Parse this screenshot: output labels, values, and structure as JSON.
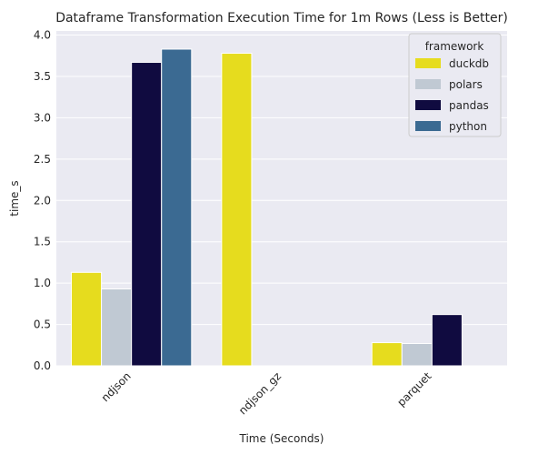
{
  "chart_data": {
    "type": "bar",
    "title": "Dataframe Transformation Execution Time for 1m Rows (Less is Better)",
    "xlabel": "Time (Seconds)",
    "ylabel": "time_s",
    "categories": [
      "ndjson",
      "ndjson_gz",
      "parquet"
    ],
    "ylim": [
      0,
      4.05
    ],
    "yticks": [
      "0.0",
      "0.5",
      "1.0",
      "1.5",
      "2.0",
      "2.5",
      "3.0",
      "3.5",
      "4.0"
    ],
    "grid": true,
    "legend_title": "framework",
    "legend_position": "top-right",
    "series": [
      {
        "name": "duckdb",
        "color": "#e6dc1e",
        "values": [
          1.13,
          3.78,
          0.28
        ]
      },
      {
        "name": "polars",
        "color": "#c0c9d3",
        "values": [
          0.93,
          0,
          0.27
        ]
      },
      {
        "name": "pandas",
        "color": "#100b40",
        "values": [
          3.67,
          0,
          0.62
        ]
      },
      {
        "name": "python",
        "color": "#3b6a92",
        "values": [
          3.83,
          0,
          0
        ]
      }
    ]
  }
}
